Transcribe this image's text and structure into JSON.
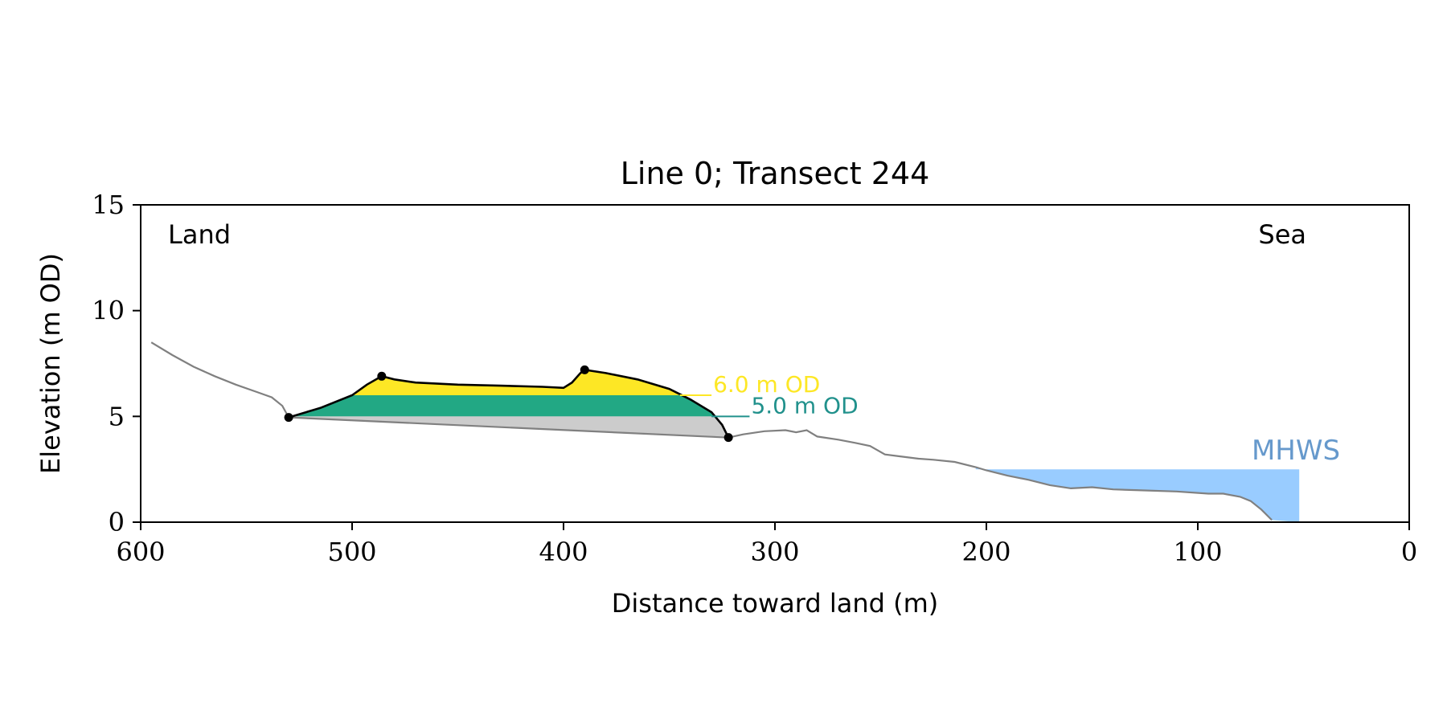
{
  "chart_data": {
    "type": "line",
    "title": "Line 0; Transect 244",
    "xlabel": "Distance toward land (m)",
    "ylabel": "Elevation (m OD)",
    "xlim": [
      600,
      0
    ],
    "ylim": [
      0,
      15
    ],
    "x_ticks": [
      600,
      500,
      400,
      300,
      200,
      100,
      0
    ],
    "y_ticks": [
      0,
      5,
      10,
      15
    ],
    "x_tick_labels": [
      "600",
      "500",
      "400",
      "300",
      "200",
      "100",
      "0"
    ],
    "y_tick_labels": [
      "0",
      "5",
      "10",
      "15"
    ],
    "grid": false,
    "corner_labels": {
      "left": "Land",
      "right": "Sea"
    },
    "colors": {
      "profile": "#808080",
      "dune_outline": "#000000",
      "fill_above_6": "#fde725",
      "fill_5_to_6": "#22a884",
      "fill_base": "#cccccc",
      "mhws_fill": "#99ccff",
      "mhws_text": "#6699cc",
      "label_6m": "#fde725",
      "label_5m": "#21918c"
    },
    "profile": [
      [
        595,
        8.5
      ],
      [
        585,
        7.9
      ],
      [
        575,
        7.35
      ],
      [
        565,
        6.9
      ],
      [
        555,
        6.5
      ],
      [
        545,
        6.15
      ],
      [
        538,
        5.9
      ],
      [
        533,
        5.5
      ],
      [
        530,
        4.95
      ],
      [
        322,
        4.0
      ],
      [
        315,
        4.15
      ],
      [
        305,
        4.3
      ],
      [
        295,
        4.35
      ],
      [
        290,
        4.25
      ],
      [
        285,
        4.35
      ],
      [
        280,
        4.05
      ],
      [
        270,
        3.9
      ],
      [
        262,
        3.75
      ],
      [
        255,
        3.6
      ],
      [
        248,
        3.2
      ],
      [
        240,
        3.1
      ],
      [
        232,
        3.0
      ],
      [
        225,
        2.95
      ],
      [
        215,
        2.85
      ],
      [
        205,
        2.6
      ],
      [
        200,
        2.45
      ],
      [
        190,
        2.2
      ],
      [
        180,
        2.0
      ],
      [
        170,
        1.75
      ],
      [
        160,
        1.6
      ],
      [
        150,
        1.65
      ],
      [
        140,
        1.55
      ],
      [
        125,
        1.5
      ],
      [
        110,
        1.45
      ],
      [
        95,
        1.35
      ],
      [
        88,
        1.35
      ],
      [
        80,
        1.2
      ],
      [
        75,
        1.0
      ],
      [
        70,
        0.6
      ],
      [
        65,
        0.1
      ]
    ],
    "dune_outline": [
      [
        530,
        4.95
      ],
      [
        515,
        5.4
      ],
      [
        500,
        6.0
      ],
      [
        493,
        6.5
      ],
      [
        486,
        6.9
      ],
      [
        480,
        6.75
      ],
      [
        470,
        6.6
      ],
      [
        450,
        6.5
      ],
      [
        430,
        6.45
      ],
      [
        410,
        6.4
      ],
      [
        400,
        6.35
      ],
      [
        396,
        6.6
      ],
      [
        392,
        7.05
      ],
      [
        390,
        7.2
      ],
      [
        380,
        7.05
      ],
      [
        365,
        6.75
      ],
      [
        350,
        6.3
      ],
      [
        340,
        5.8
      ],
      [
        330,
        5.2
      ],
      [
        325,
        4.6
      ],
      [
        322,
        4.0
      ]
    ],
    "dune_base": [
      [
        530,
        4.95
      ],
      [
        322,
        4.0
      ]
    ],
    "markers": [
      [
        530,
        4.95
      ],
      [
        486,
        6.9
      ],
      [
        390,
        7.2
      ],
      [
        322,
        4.0
      ]
    ],
    "thresholds": [
      {
        "level": 6.0,
        "label": "6.0 m OD",
        "line_x": [
          345,
          330
        ]
      },
      {
        "level": 5.0,
        "label": "5.0 m OD",
        "line_x": [
          330,
          312
        ]
      }
    ],
    "mhws": {
      "label": "MHWS",
      "level": 2.5,
      "x_start": 205,
      "x_end": 52
    }
  }
}
